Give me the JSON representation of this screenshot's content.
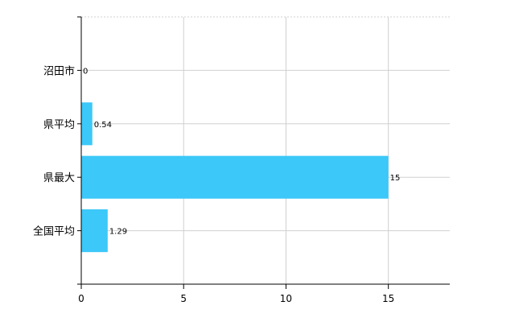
{
  "chart_data": {
    "type": "bar",
    "orientation": "horizontal",
    "categories": [
      "沼田市",
      "県平均",
      "県最大",
      "全国平均"
    ],
    "values": [
      0,
      0.54,
      15,
      1.29
    ],
    "data_labels": [
      "0",
      "0.54",
      "15",
      "1.29"
    ],
    "xlim": [
      0,
      18
    ],
    "xticks": [
      0,
      5,
      10,
      15
    ],
    "xtick_labels": [
      "0",
      "5",
      "10",
      "15"
    ],
    "bar_color": "#3cc8f8",
    "grid": true,
    "legend": "none"
  }
}
